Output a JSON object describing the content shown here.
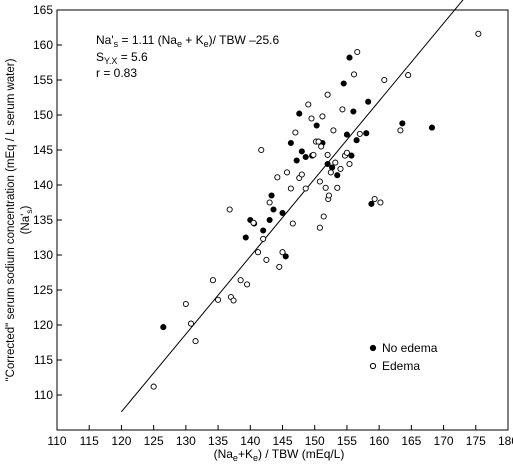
{
  "colors": {
    "axis": "#000000",
    "no_edema": "#000000",
    "edema_fill": "#ffffff"
  },
  "chart_data": {
    "type": "scatter",
    "xlabel": {
      "prefix": "(Na",
      "sub1": "e",
      "mid": "+K",
      "sub2": "e",
      "suffix": ") / TBW   (mEq/L)"
    },
    "ylabel": {
      "line1": "\"Corrected\" serum sodium concentration (mEq / L serum water)",
      "line2_prefix": "(Na'",
      "line2_sub": "s",
      "line2_suffix": ")"
    },
    "xlim": [
      110,
      180
    ],
    "ylim": [
      105,
      165
    ],
    "x_ticks": [
      "110",
      "115",
      "120",
      "125",
      "130",
      "135",
      "140",
      "145",
      "150",
      "155",
      "160",
      "165",
      "170",
      "175",
      "180"
    ],
    "y_ticks": [
      "110",
      "115",
      "120",
      "125",
      "130",
      "135",
      "140",
      "145",
      "150",
      "155",
      "160",
      "165"
    ],
    "annotations": {
      "eq": {
        "a": "Na'",
        "a_sub": "s",
        "b": " = 1.11 (Na",
        "b_sub": "e",
        "c": " + K",
        "c_sub": "e",
        "d": ")/ TBW –25.6"
      },
      "syx": {
        "a": "S",
        "a_sub": "Y.X",
        "b": " = 5.6"
      },
      "r": "r = 0.83"
    },
    "regression": {
      "slope": 1.11,
      "intercept": -25.6,
      "x_from": 120.0,
      "x_to": 175.5
    },
    "legend": {
      "placement": "bottom-right",
      "items": [
        "No edema",
        "Edema"
      ]
    },
    "series": [
      {
        "name": "No edema",
        "marker": "filled",
        "points": [
          [
            126.5,
            119.7
          ],
          [
            140.0,
            135.0
          ],
          [
            140.6,
            134.5
          ],
          [
            139.3,
            132.5
          ],
          [
            142.0,
            133.5
          ],
          [
            143.0,
            135.0
          ],
          [
            143.3,
            138.5
          ],
          [
            143.6,
            136.5
          ],
          [
            145.0,
            136.0
          ],
          [
            145.5,
            129.8
          ],
          [
            146.3,
            146.0
          ],
          [
            147.2,
            143.5
          ],
          [
            147.6,
            150.2
          ],
          [
            148.0,
            144.8
          ],
          [
            148.6,
            144.0
          ],
          [
            149.6,
            144.2
          ],
          [
            150.3,
            148.5
          ],
          [
            151.2,
            146.0
          ],
          [
            152.0,
            143.0
          ],
          [
            152.7,
            142.5
          ],
          [
            153.5,
            141.4
          ],
          [
            154.5,
            154.5
          ],
          [
            155.0,
            147.2
          ],
          [
            155.4,
            158.2
          ],
          [
            155.7,
            144.2
          ],
          [
            156.0,
            150.5
          ],
          [
            156.5,
            146.4
          ],
          [
            158.0,
            147.4
          ],
          [
            158.3,
            151.9
          ],
          [
            158.8,
            137.3
          ],
          [
            163.6,
            148.8
          ],
          [
            168.2,
            148.2
          ]
        ]
      },
      {
        "name": "Edema",
        "marker": "open",
        "points": [
          [
            125.0,
            111.2
          ],
          [
            130.0,
            123.0
          ],
          [
            130.8,
            120.2
          ],
          [
            131.5,
            117.7
          ],
          [
            134.2,
            126.4
          ],
          [
            135.0,
            123.6
          ],
          [
            136.8,
            136.5
          ],
          [
            137.0,
            124.0
          ],
          [
            137.4,
            123.5
          ],
          [
            138.5,
            126.4
          ],
          [
            139.5,
            125.8
          ],
          [
            140.5,
            134.6
          ],
          [
            141.2,
            130.4
          ],
          [
            141.7,
            145.0
          ],
          [
            142.0,
            132.3
          ],
          [
            142.5,
            129.3
          ],
          [
            143.0,
            137.5
          ],
          [
            144.2,
            141.1
          ],
          [
            144.5,
            128.3
          ],
          [
            145.0,
            130.4
          ],
          [
            145.7,
            141.8
          ],
          [
            146.3,
            139.5
          ],
          [
            146.6,
            134.5
          ],
          [
            147.0,
            147.5
          ],
          [
            147.6,
            141.0
          ],
          [
            148.0,
            141.5
          ],
          [
            148.6,
            139.5
          ],
          [
            149.0,
            151.5
          ],
          [
            149.5,
            149.5
          ],
          [
            149.8,
            144.3
          ],
          [
            150.2,
            146.2
          ],
          [
            150.6,
            146.2
          ],
          [
            150.8,
            140.5
          ],
          [
            150.8,
            133.9
          ],
          [
            151.0,
            145.5
          ],
          [
            151.2,
            149.8
          ],
          [
            151.4,
            135.5
          ],
          [
            151.7,
            139.6
          ],
          [
            152.0,
            152.9
          ],
          [
            152.0,
            144.3
          ],
          [
            152.1,
            138.0
          ],
          [
            152.2,
            138.5
          ],
          [
            152.5,
            141.8
          ],
          [
            152.9,
            147.8
          ],
          [
            153.2,
            143.2
          ],
          [
            153.5,
            139.6
          ],
          [
            154.0,
            142.3
          ],
          [
            154.3,
            150.8
          ],
          [
            154.7,
            144.2
          ],
          [
            155.0,
            144.6
          ],
          [
            155.4,
            143.0
          ],
          [
            156.1,
            155.8
          ],
          [
            156.6,
            159.0
          ],
          [
            157.0,
            147.3
          ],
          [
            159.3,
            138.0
          ],
          [
            160.2,
            137.5
          ],
          [
            160.8,
            155.0
          ],
          [
            163.3,
            147.8
          ],
          [
            164.5,
            155.7
          ],
          [
            175.4,
            161.6
          ]
        ]
      }
    ]
  }
}
